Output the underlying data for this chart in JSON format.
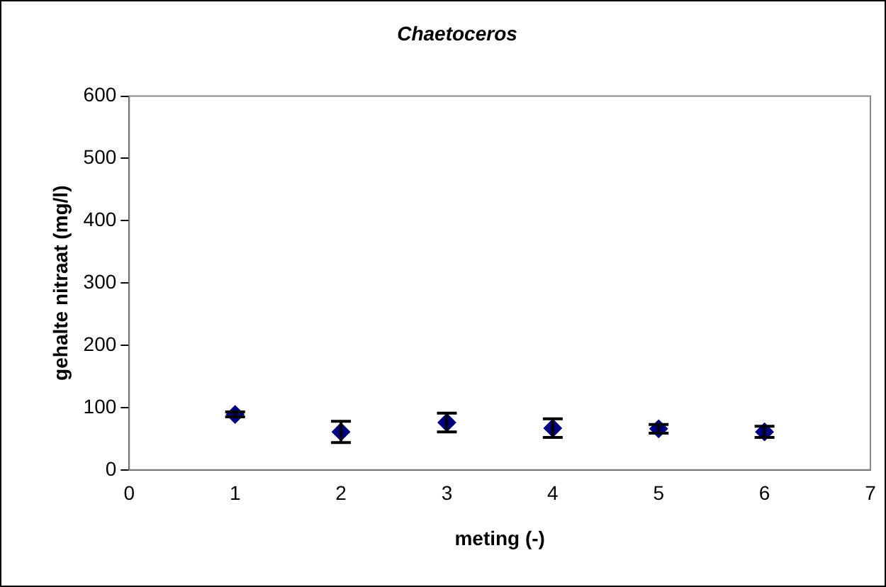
{
  "chart_data": {
    "type": "scatter",
    "title": "Chaetoceros",
    "xlabel": "meting (-)",
    "ylabel": "gehalte nitraat (mg/l)",
    "x": [
      1,
      2,
      3,
      4,
      5,
      6
    ],
    "values": [
      89,
      61,
      76,
      67,
      66,
      61
    ],
    "errors": [
      4,
      17,
      15,
      15,
      7,
      9
    ],
    "color": "#000080",
    "marker": "diamond",
    "xlim": [
      0,
      7
    ],
    "xticks": [
      0,
      1,
      2,
      3,
      4,
      5,
      6,
      7
    ],
    "ylim": [
      0,
      600
    ],
    "yticks": [
      0,
      100,
      200,
      300,
      400,
      500,
      600
    ],
    "grid": false,
    "legend": false
  }
}
